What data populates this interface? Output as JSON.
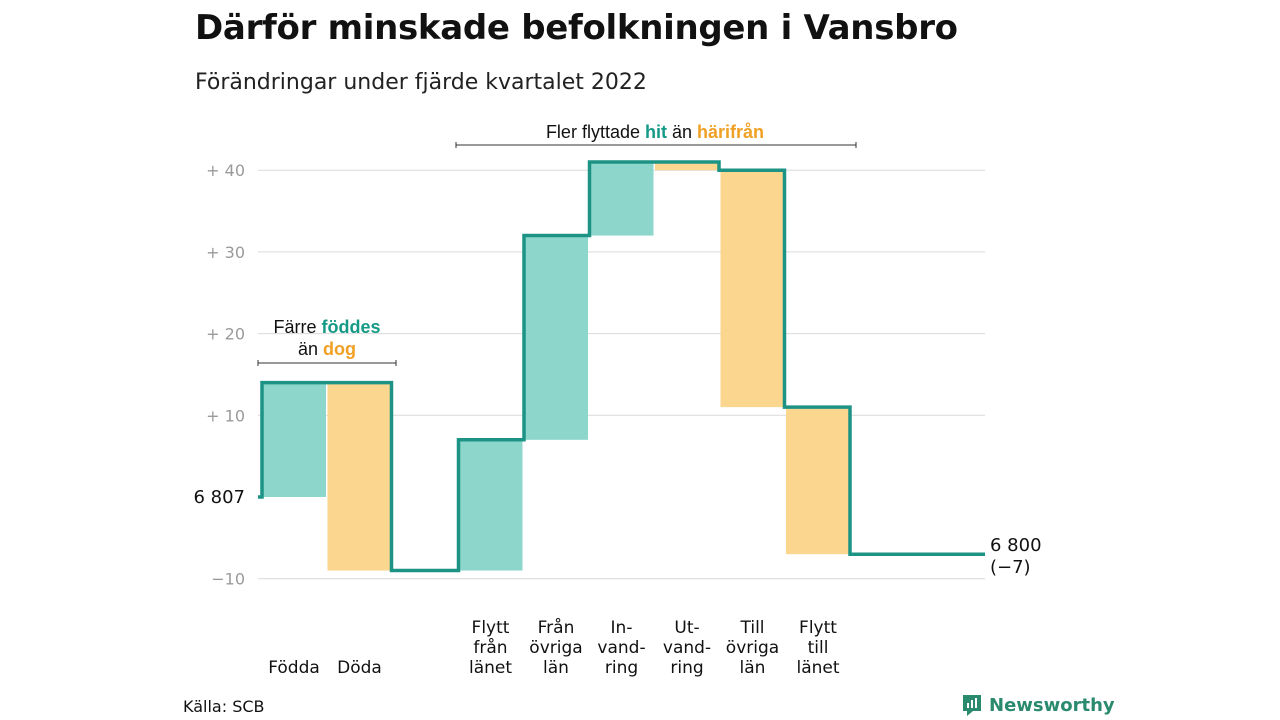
{
  "header": {
    "title": "Därför minskade befolkningen i Vansbro",
    "subtitle": "Förändringar under fjärde kvartalet 2022"
  },
  "footer": {
    "source": "Källa: SCB",
    "brand": "Newsworthy"
  },
  "colors": {
    "increase_fill": "#8dd6cb",
    "decrease_fill": "#fad68e",
    "line": "#1c9384",
    "grid": "#d9d9d9",
    "tick_text": "#9a9a9a",
    "ann_teal": "#159a86",
    "ann_orange": "#f0a024"
  },
  "annotations": {
    "births": {
      "line1_pre": "Färre ",
      "line1_hl": "föddes",
      "line2_pre": "än ",
      "line2_hl": "dog"
    },
    "moves": {
      "pre": "Fler flyttade ",
      "hl1": "hit",
      "mid": " än ",
      "hl2": "härifrån"
    }
  },
  "chart_data": {
    "type": "waterfall",
    "baseline": 6807,
    "start_label": "6 807",
    "end_label": "6 800",
    "end_change_label": "(−7)",
    "ylim": [
      -11,
      41
    ],
    "yticks": [
      -10,
      10,
      20,
      30,
      40
    ],
    "ytick_labels": [
      "−10",
      "+ 10",
      "+ 20",
      "+ 30",
      "+ 40"
    ],
    "grid": true,
    "steps": [
      {
        "label_lines": [
          "Födda"
        ],
        "change": 14,
        "direction": "increase"
      },
      {
        "label_lines": [
          "Döda"
        ],
        "change": -23,
        "direction": "decrease"
      },
      {
        "label_lines": [
          "Flytt",
          "från",
          "länet"
        ],
        "change": 16,
        "direction": "increase"
      },
      {
        "label_lines": [
          "Från",
          "övriga",
          "län"
        ],
        "change": 25,
        "direction": "increase"
      },
      {
        "label_lines": [
          "In-",
          "vand-",
          "ring"
        ],
        "change": 9,
        "direction": "increase"
      },
      {
        "label_lines": [
          "Ut-",
          "vand-",
          "ring"
        ],
        "change": -1,
        "direction": "decrease"
      },
      {
        "label_lines": [
          "Till",
          "övriga",
          "län"
        ],
        "change": -29,
        "direction": "decrease"
      },
      {
        "label_lines": [
          "Flytt",
          "till",
          "länet"
        ],
        "change": -18,
        "direction": "decrease"
      }
    ],
    "end_value": -7
  }
}
